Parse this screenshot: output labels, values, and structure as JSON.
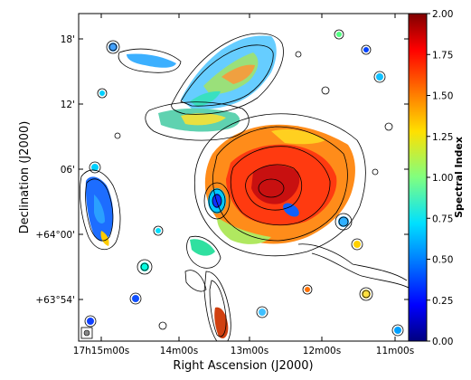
{
  "chart_data": {
    "type": "heatmap",
    "title": "",
    "xlabel": "Right Ascension (J2000)",
    "ylabel": "Declination (J2000)",
    "x_ticks": [
      "17h15m00s",
      "14m00s",
      "13m00s",
      "12m00s",
      "11m00s"
    ],
    "y_ticks": [
      "+63°54'",
      "+64°00'",
      "06'",
      "12'",
      "18'"
    ],
    "colorbar": {
      "label": "Spectral Index",
      "ticks": [
        "0.00",
        "0.25",
        "0.50",
        "0.75",
        "1.00",
        "1.25",
        "1.50",
        "1.75",
        "2.00"
      ],
      "range": [
        0.0,
        2.0
      ],
      "colormap": "jet"
    },
    "grid": false,
    "contours": "black total-intensity contours overlaid on spectral index map",
    "beam_marker": "bottom-left"
  }
}
